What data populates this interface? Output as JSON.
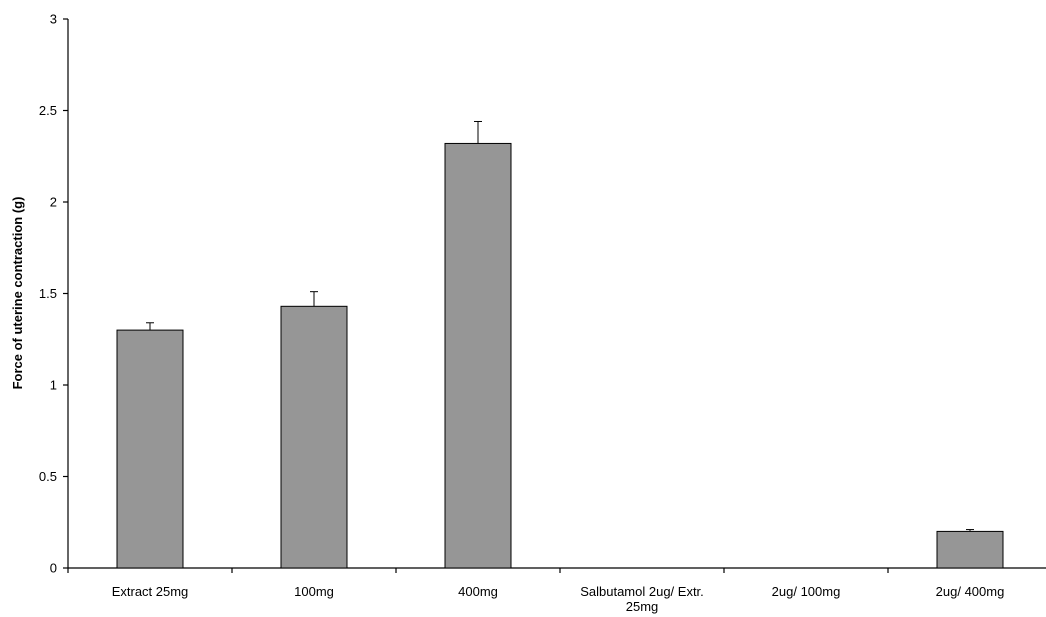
{
  "chart_data": {
    "type": "bar",
    "title": "",
    "xlabel": "",
    "ylabel": "Force of uterine contraction (g)",
    "ylim": [
      0,
      3
    ],
    "yticks": [
      "0",
      "0.5",
      "1",
      "1.5",
      "2",
      "2.5",
      "3"
    ],
    "categories": [
      [
        "Extract 25mg"
      ],
      [
        "100mg"
      ],
      [
        "400mg"
      ],
      [
        "Salbutamol 2ug/ Extr.",
        "25mg"
      ],
      [
        "2ug/ 100mg"
      ],
      [
        "2ug/ 400mg"
      ]
    ],
    "values": [
      1.3,
      1.43,
      2.32,
      0,
      0,
      0.2
    ],
    "errors": [
      0.04,
      0.08,
      0.12,
      0,
      0,
      0.01
    ],
    "grid": false,
    "colors": {
      "bar_fill": "#969696",
      "bar_stroke": "#000000",
      "axis": "#000000"
    }
  }
}
